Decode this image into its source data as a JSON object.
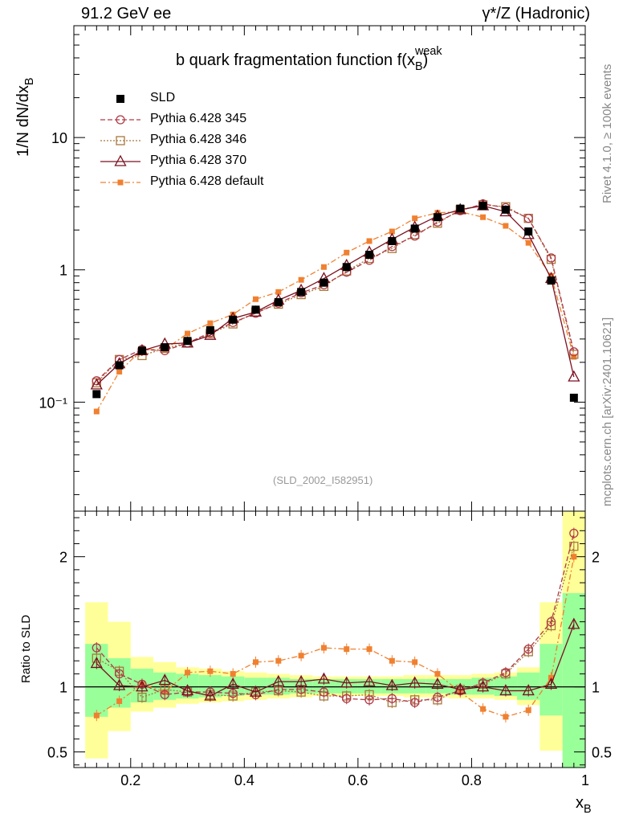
{
  "header": {
    "left": "91.2 GeV ee",
    "right": "γ*/Z (Hadronic)"
  },
  "title": "b quark fragmentation function f(x_B^weak)",
  "side_notes": {
    "top": "Rivet 4.1.0, ≥ 100k events",
    "bottom": "mcplots.cern.ch [arXiv:2401.10621]"
  },
  "analysis_id": "(SLD_2002_I582951)",
  "colors": {
    "sld": "#000000",
    "p345": "#b03a48",
    "p346": "#a8783c",
    "p370": "#7b1020",
    "pdefault": "#f08030",
    "band_yellow": "#ffff99",
    "band_green": "#99ff99"
  },
  "chart_data": [
    {
      "type": "line",
      "panel": "main",
      "scale": "log",
      "ylabel": "1/N  dN/dx_B",
      "xlim": [
        0.1,
        1.0
      ],
      "ylim": [
        0.015,
        70
      ],
      "yticks": [
        0.1,
        1,
        10
      ],
      "ytick_labels": [
        "10⁻¹",
        "1",
        "10"
      ],
      "x": [
        0.14,
        0.18,
        0.22,
        0.26,
        0.3,
        0.34,
        0.38,
        0.42,
        0.46,
        0.5,
        0.54,
        0.58,
        0.62,
        0.66,
        0.7,
        0.74,
        0.78,
        0.82,
        0.86,
        0.9,
        0.94,
        0.98
      ],
      "series": [
        {
          "key": "sld",
          "name": "SLD",
          "marker": "square-filled",
          "values": [
            0.115,
            0.19,
            0.245,
            0.26,
            0.29,
            0.35,
            0.42,
            0.5,
            0.57,
            0.68,
            0.8,
            1.05,
            1.3,
            1.65,
            2.05,
            2.5,
            2.9,
            3.05,
            2.85,
            1.95,
            0.83,
            0.108
          ]
        },
        {
          "key": "p345",
          "name": "Pythia 6.428 345",
          "marker": "circle-open",
          "dash": "6,3",
          "values": [
            0.145,
            0.21,
            0.25,
            0.245,
            0.28,
            0.335,
            0.4,
            0.47,
            0.56,
            0.67,
            0.77,
            0.96,
            1.18,
            1.5,
            1.8,
            2.3,
            2.8,
            3.15,
            2.95,
            2.45,
            1.23,
            0.24
          ]
        },
        {
          "key": "p346",
          "name": "Pythia 6.428 346",
          "marker": "square-open",
          "dash": "2,2",
          "values": [
            0.14,
            0.21,
            0.225,
            0.255,
            0.28,
            0.33,
            0.39,
            0.48,
            0.55,
            0.65,
            0.75,
            0.98,
            1.22,
            1.45,
            1.85,
            2.25,
            2.85,
            3.1,
            3.0,
            2.45,
            1.2,
            0.23
          ]
        },
        {
          "key": "p370",
          "name": "Pythia 6.428 370",
          "marker": "triangle-open",
          "dash": "",
          "values": [
            0.135,
            0.195,
            0.245,
            0.275,
            0.28,
            0.32,
            0.43,
            0.48,
            0.59,
            0.7,
            0.86,
            1.08,
            1.36,
            1.7,
            2.1,
            2.55,
            2.85,
            3.05,
            2.75,
            1.85,
            0.86,
            0.155
          ]
        },
        {
          "key": "pdefault",
          "name": "Pythia 6.428 default",
          "marker": "square-small-filled",
          "dash": "7,3,2,3",
          "values": [
            0.085,
            0.17,
            0.25,
            0.25,
            0.33,
            0.395,
            0.46,
            0.6,
            0.68,
            0.84,
            1.05,
            1.35,
            1.65,
            1.95,
            2.45,
            2.7,
            2.75,
            2.5,
            2.15,
            1.6,
            0.9,
            0.22
          ]
        }
      ]
    },
    {
      "type": "line",
      "panel": "ratio",
      "ylabel": "Ratio to SLD",
      "xlabel": "x_B",
      "xlim": [
        0.1,
        1.0
      ],
      "ylim": [
        0.38,
        2.35
      ],
      "yticks": [
        0.5,
        1,
        2
      ],
      "ytick_labels": [
        "0.5",
        "1",
        "2"
      ],
      "xticks": [
        0.2,
        0.4,
        0.6,
        0.8,
        1.0
      ],
      "xtick_labels": [
        "0.2",
        "0.4",
        "0.6",
        "0.8",
        "1"
      ],
      "x": [
        0.14,
        0.18,
        0.22,
        0.26,
        0.3,
        0.34,
        0.38,
        0.42,
        0.46,
        0.5,
        0.54,
        0.58,
        0.62,
        0.66,
        0.7,
        0.74,
        0.78,
        0.82,
        0.86,
        0.9,
        0.94,
        0.98
      ],
      "bands": {
        "yellow": [
          [
            0.45,
            1.65
          ],
          [
            0.66,
            1.5
          ],
          [
            0.81,
            1.23
          ],
          [
            0.84,
            1.19
          ],
          [
            0.87,
            1.15
          ],
          [
            0.88,
            1.14
          ],
          [
            0.89,
            1.12
          ],
          [
            0.9,
            1.11
          ],
          [
            0.91,
            1.1
          ],
          [
            0.92,
            1.09
          ],
          [
            0.93,
            1.08
          ],
          [
            0.93,
            1.08
          ],
          [
            0.93,
            1.08
          ],
          [
            0.93,
            1.08
          ],
          [
            0.92,
            1.09
          ],
          [
            0.92,
            1.09
          ],
          [
            0.91,
            1.09
          ],
          [
            0.91,
            1.1
          ],
          [
            0.9,
            1.11
          ],
          [
            0.86,
            1.15
          ],
          [
            0.51,
            1.65
          ],
          [
            0.35,
            2.35
          ]
        ],
        "green": [
          [
            0.77,
            1.33
          ],
          [
            0.84,
            1.22
          ],
          [
            0.88,
            1.14
          ],
          [
            0.9,
            1.11
          ],
          [
            0.91,
            1.1
          ],
          [
            0.92,
            1.09
          ],
          [
            0.93,
            1.08
          ],
          [
            0.94,
            1.07
          ],
          [
            0.94,
            1.07
          ],
          [
            0.95,
            1.06
          ],
          [
            0.95,
            1.06
          ],
          [
            0.95,
            1.06
          ],
          [
            0.95,
            1.06
          ],
          [
            0.95,
            1.06
          ],
          [
            0.95,
            1.06
          ],
          [
            0.95,
            1.06
          ],
          [
            0.94,
            1.06
          ],
          [
            0.94,
            1.07
          ],
          [
            0.93,
            1.08
          ],
          [
            0.9,
            1.11
          ],
          [
            0.78,
            1.33
          ],
          [
            0.35,
            1.72
          ]
        ]
      },
      "series": [
        {
          "key": "p345",
          "name": "Pythia 6.428 345",
          "marker": "circle-open",
          "dash": "6,3",
          "values": [
            1.3,
            1.1,
            1.02,
            0.94,
            0.96,
            0.96,
            0.95,
            0.94,
            0.98,
            0.98,
            0.96,
            0.91,
            0.9,
            0.91,
            0.88,
            0.92,
            0.97,
            1.03,
            1.11,
            1.29,
            1.5,
            2.18
          ]
        },
        {
          "key": "p346",
          "name": "Pythia 6.428 346",
          "marker": "square-open",
          "dash": "2,2",
          "values": [
            1.22,
            1.12,
            0.92,
            0.98,
            0.96,
            0.94,
            0.93,
            0.96,
            0.97,
            0.96,
            0.93,
            0.93,
            0.94,
            0.88,
            0.9,
            0.9,
            0.98,
            1.02,
            1.1,
            1.27,
            1.47,
            2.08
          ]
        },
        {
          "key": "p370",
          "name": "Pythia 6.428 370",
          "marker": "triangle-open",
          "dash": "",
          "values": [
            1.18,
            1.01,
            1.0,
            1.05,
            0.97,
            0.93,
            1.02,
            0.96,
            1.04,
            1.04,
            1.06,
            1.03,
            1.04,
            1.01,
            1.03,
            1.02,
            0.98,
            1.0,
            0.97,
            0.97,
            1.02,
            1.48
          ]
        },
        {
          "key": "pdefault",
          "name": "Pythia 6.428 default",
          "marker": "square-small-filled",
          "dash": "7,3,2,3",
          "values": [
            0.78,
            0.89,
            1.02,
            0.96,
            1.11,
            1.12,
            1.1,
            1.19,
            1.2,
            1.24,
            1.3,
            1.29,
            1.29,
            1.2,
            1.19,
            1.1,
            0.96,
            0.83,
            0.77,
            0.82,
            1.07,
            2.0
          ]
        }
      ]
    }
  ]
}
